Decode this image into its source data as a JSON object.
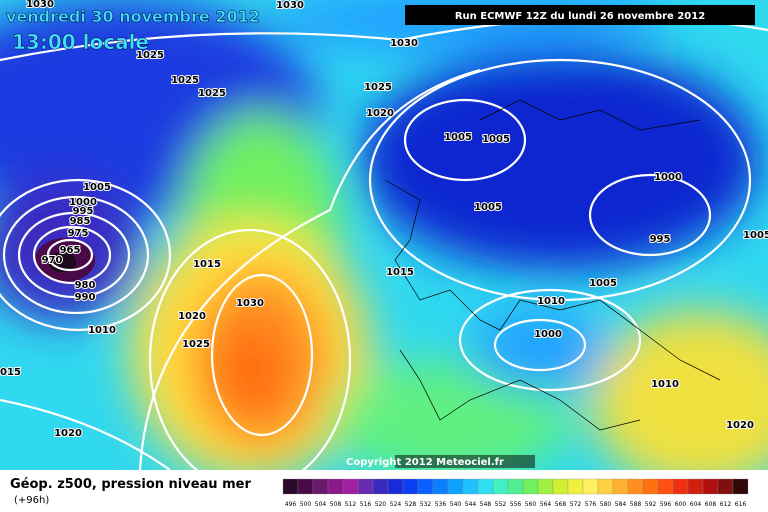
{
  "header": {
    "date": "vendredi 30 novembre 2012",
    "time": "13:00 locale",
    "run": "Run ECMWF 12Z du lundi 26 novembre 2012"
  },
  "copyright": "Copyright 2012 Meteociel.fr",
  "legend": {
    "title": "Géop. z500, pression niveau mer",
    "lead": "(+96h)",
    "labels": [
      496,
      500,
      504,
      508,
      512,
      516,
      520,
      524,
      528,
      532,
      536,
      540,
      544,
      548,
      552,
      556,
      560,
      564,
      568,
      572,
      576,
      580,
      584,
      588,
      592,
      596,
      600,
      604,
      608,
      612,
      616
    ],
    "colors": [
      "#2a0a2a",
      "#4a0a4a",
      "#6a1a6a",
      "#8a1a8a",
      "#a020a0",
      "#6a2ab0",
      "#3a2ac0",
      "#1a2ad8",
      "#0a40f0",
      "#0a60ff",
      "#0a80ff",
      "#10a0ff",
      "#20c0ff",
      "#30e0f0",
      "#40f0c0",
      "#50f090",
      "#70f060",
      "#a0f040",
      "#d0f030",
      "#f0f040",
      "#fff060",
      "#ffd040",
      "#ffb030",
      "#ff9020",
      "#ff7010",
      "#ff5010",
      "#f03010",
      "#d02010",
      "#b01010",
      "#801010",
      "#300808"
    ]
  },
  "isobar_labels": [
    1030,
    1030,
    1025,
    1025,
    1025,
    1030,
    1025,
    1020,
    1005,
    1005,
    1005,
    1000,
    995,
    1005,
    1000,
    995,
    985,
    975,
    965,
    970,
    980,
    990,
    1015,
    1015,
    1020,
    1030,
    1025,
    1010,
    1015,
    1020,
    1010,
    1005,
    1000,
    1010,
    1020,
    1005
  ]
}
